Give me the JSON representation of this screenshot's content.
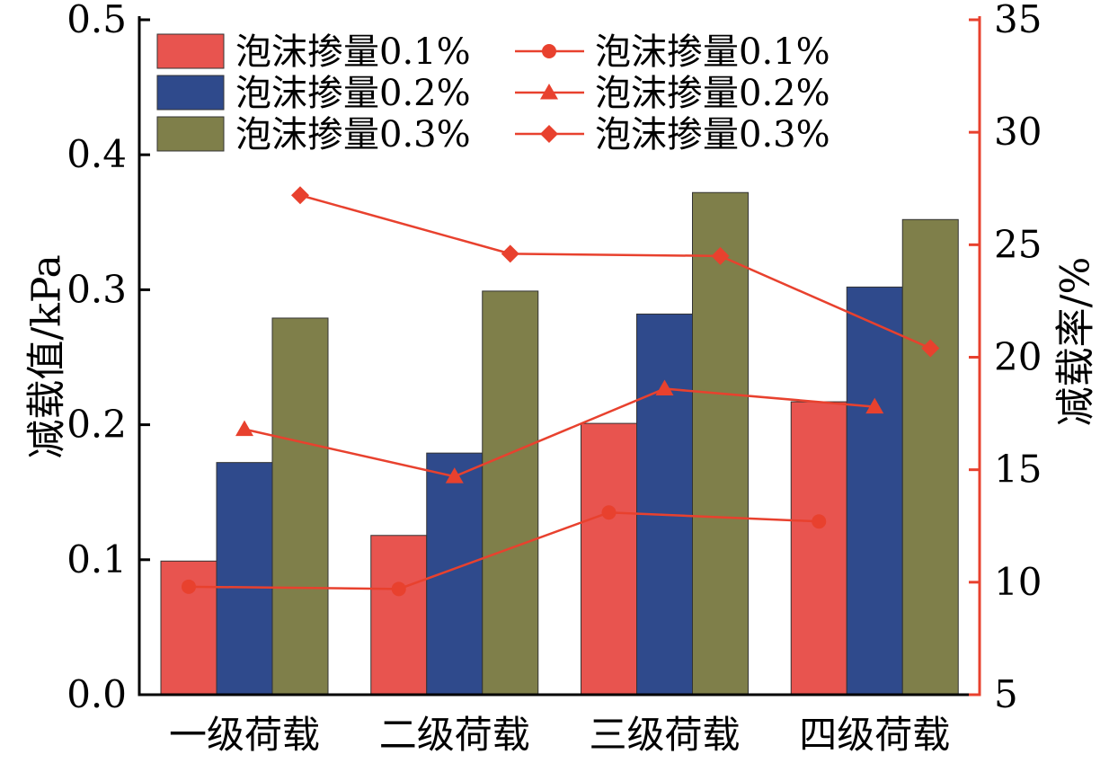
{
  "chart_data": {
    "type": "bar",
    "title": "",
    "categories": [
      "一级荷载",
      "二级荷载",
      "三级荷载",
      "四级荷载"
    ],
    "y_left": {
      "label": "减载值/kPa",
      "ylim": [
        0.0,
        0.5
      ],
      "ticks": [
        "0.0",
        "0.1",
        "0.2",
        "0.3",
        "0.4",
        "0.5"
      ]
    },
    "y_right": {
      "label": "减载率/%",
      "ylim": [
        5,
        35
      ],
      "ticks": [
        "5",
        "10",
        "15",
        "20",
        "25",
        "30",
        "35"
      ],
      "color": "#e8412e"
    },
    "bar_series": [
      {
        "name": "泡沫掺量0.1%",
        "color": "#e8544f",
        "values": [
          0.099,
          0.118,
          0.201,
          0.217
        ]
      },
      {
        "name": "泡沫掺量0.2%",
        "color": "#2f4a8c",
        "values": [
          0.172,
          0.179,
          0.282,
          0.302
        ]
      },
      {
        "name": "泡沫掺量0.3%",
        "color": "#7f7f4a",
        "values": [
          0.279,
          0.299,
          0.372,
          0.352
        ]
      }
    ],
    "line_series": [
      {
        "name": "泡沫掺量0.1%",
        "marker": "circle",
        "color": "#e8412e",
        "values": [
          9.8,
          9.7,
          13.1,
          12.7
        ]
      },
      {
        "name": "泡沫掺量0.2%",
        "marker": "triangle",
        "color": "#e8412e",
        "values": [
          16.8,
          14.7,
          18.6,
          17.8
        ]
      },
      {
        "name": "泡沫掺量0.3%",
        "marker": "diamond",
        "color": "#e8412e",
        "values": [
          27.2,
          24.6,
          24.5,
          20.4
        ]
      }
    ],
    "legend": "top-left",
    "grid": false
  }
}
